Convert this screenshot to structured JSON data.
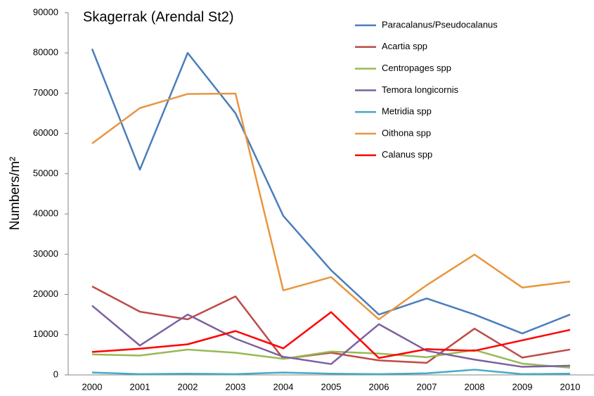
{
  "chart_data": {
    "type": "line",
    "title": "Skagerrak (Arendal St2)",
    "y_label": "Numbers/m²",
    "categories": [
      "2000",
      "2001",
      "2002",
      "2003",
      "2004",
      "2005",
      "2006",
      "2007",
      "2008",
      "2009",
      "2010"
    ],
    "series": [
      {
        "name": "Paracalanus/Pseudocalanus",
        "color": "#4a7ebb",
        "values": [
          81000,
          51000,
          80000,
          65000,
          39500,
          26000,
          15000,
          19000,
          15000,
          10300,
          15000
        ]
      },
      {
        "name": "Acartia spp",
        "color": "#be4b48",
        "values": [
          22000,
          15700,
          13800,
          19500,
          4000,
          5500,
          3600,
          3000,
          11500,
          4300,
          6300
        ]
      },
      {
        "name": "Centropages spp",
        "color": "#98b954",
        "values": [
          5100,
          4800,
          6300,
          5500,
          4000,
          5800,
          5300,
          4400,
          6200,
          2800,
          1800
        ]
      },
      {
        "name": "Temora longicornis",
        "color": "#7d60a0",
        "values": [
          17200,
          7300,
          15000,
          9000,
          4500,
          2700,
          12600,
          6000,
          3800,
          2000,
          2300
        ]
      },
      {
        "name": "Metridia spp",
        "color": "#46aac5",
        "values": [
          600,
          200,
          300,
          200,
          600,
          300,
          200,
          400,
          1300,
          200,
          300
        ]
      },
      {
        "name": "Oithona spp",
        "color": "#e8963f",
        "values": [
          57500,
          66300,
          69800,
          69900,
          21000,
          24300,
          13800,
          22300,
          29900,
          21700,
          23200
        ]
      },
      {
        "name": "Calanus spp",
        "color": "#ff0000",
        "values": [
          5700,
          6500,
          7600,
          10900,
          6600,
          15600,
          4200,
          6400,
          6000,
          8600,
          11200
        ]
      }
    ],
    "ylim": [
      0,
      90000
    ],
    "yticks": [
      0,
      10000,
      20000,
      30000,
      40000,
      50000,
      60000,
      70000,
      80000,
      90000
    ]
  }
}
